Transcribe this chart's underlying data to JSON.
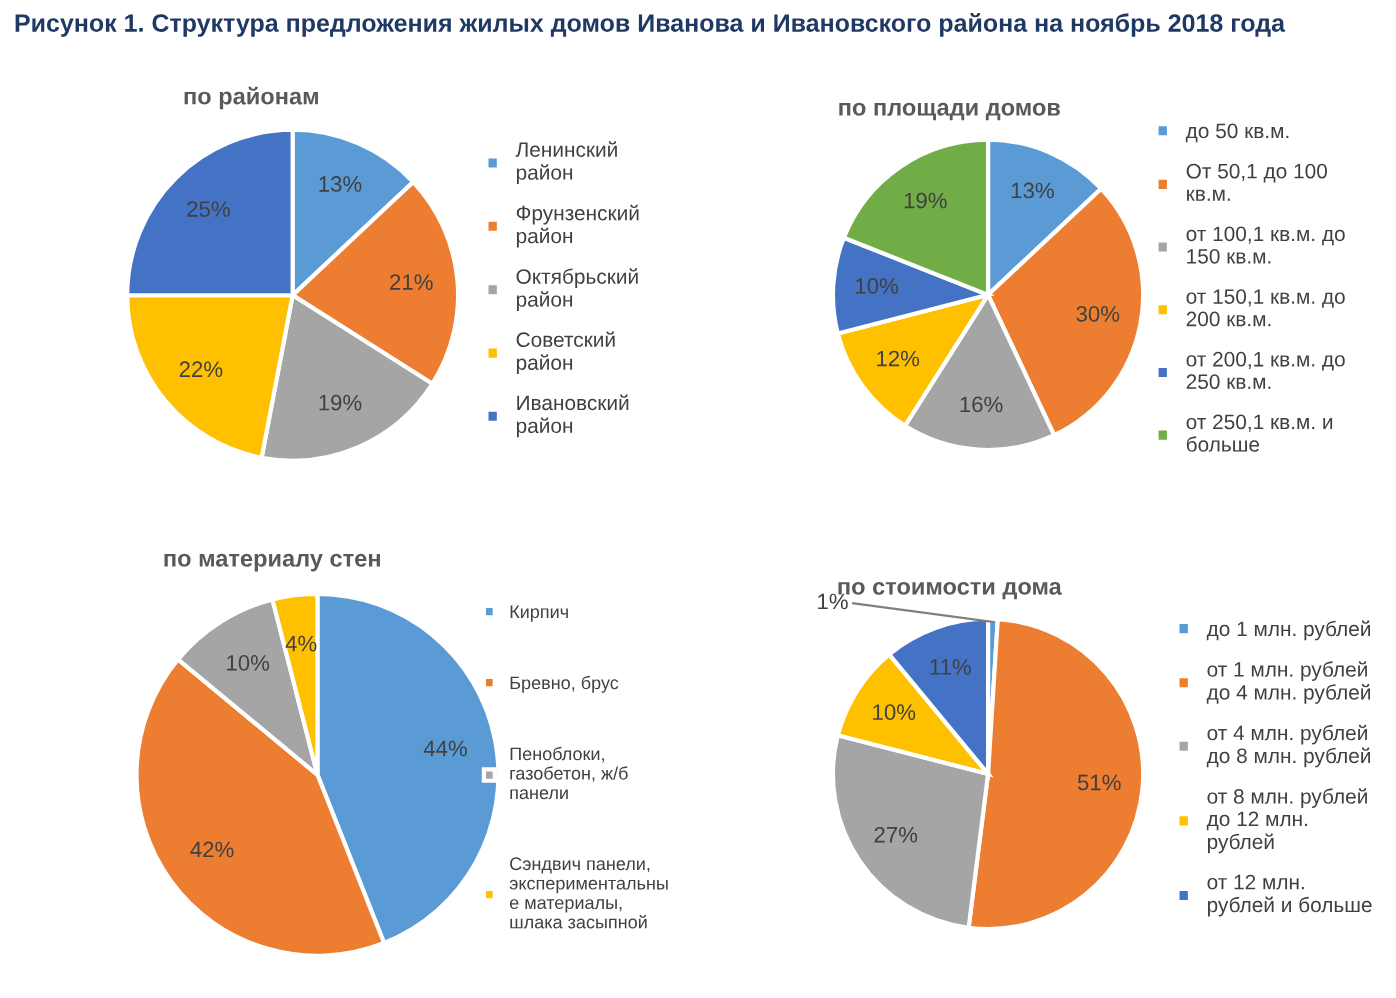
{
  "chart_data": [
    {
      "type": "pie",
      "title": "по районам",
      "annotations": [
        "Рисунок 1. Структура предложения жилых домов Иванова и Ивановского района на ноябрь 2018 года"
      ],
      "categories": [
        "Ленинский\nрайон",
        "Фрунзенский\nрайон",
        "Октябрьский\nрайон",
        "Советский\nрайон",
        "Ивановский\nрайон"
      ],
      "values": [
        13,
        21,
        19,
        22,
        25
      ],
      "value_labels": [
        "13%",
        "21%",
        "19%",
        "22%",
        "25%"
      ],
      "colors": [
        "#5b9bd5",
        "#ed7d31",
        "#a5a5a5",
        "#ffc000",
        "#4472c4"
      ],
      "legend": "right"
    },
    {
      "type": "pie",
      "title": "по площади домов",
      "categories": [
        "до 50 кв.м.",
        "От 50,1 до 100\nкв.м.",
        "от 100,1 кв.м. до\n150 кв.м.",
        "от 150,1 кв.м. до\n200 кв.м.",
        "от 200,1 кв.м. до\n250 кв.м.",
        "от 250,1 кв.м. и\nбольше"
      ],
      "values": [
        13,
        30,
        16,
        12,
        10,
        19
      ],
      "value_labels": [
        "13%",
        "30%",
        "16%",
        "12%",
        "10%",
        "19%"
      ],
      "colors": [
        "#5b9bd5",
        "#ed7d31",
        "#a5a5a5",
        "#ffc000",
        "#4472c4",
        "#70ad47"
      ],
      "legend": "right"
    },
    {
      "type": "pie",
      "title": "по материалу стен",
      "categories": [
        "Кирпич",
        "Бревно, брус",
        "Пеноблоки,\nгазобетон, ж/б\nпанели",
        "Сэндвич панели,\nэкспериментальны\nе материалы,\nшлака засыпной"
      ],
      "values": [
        44,
        42,
        10,
        4
      ],
      "value_labels": [
        "44%",
        "42%",
        "10%",
        "4%"
      ],
      "colors": [
        "#5b9bd5",
        "#ed7d31",
        "#a5a5a5",
        "#ffc000"
      ],
      "legend": "right"
    },
    {
      "type": "pie",
      "title": "по стоимости дома",
      "categories": [
        "до 1 млн. рублей",
        "от 1 млн. рублей\nдо 4 млн. рублей",
        "от 4 млн. рублей\nдо 8 млн. рублей",
        "от 8 млн. рублей\nдо 12 млн.\nрублей",
        "от 12 млн.\nрублей и больше"
      ],
      "values": [
        1,
        51,
        27,
        10,
        11
      ],
      "value_labels": [
        "1%",
        "51%",
        "27%",
        "10%",
        "11%"
      ],
      "colors": [
        "#5b9bd5",
        "#ed7d31",
        "#a5a5a5",
        "#ffc000",
        "#4472c4"
      ],
      "legend": "right"
    }
  ]
}
